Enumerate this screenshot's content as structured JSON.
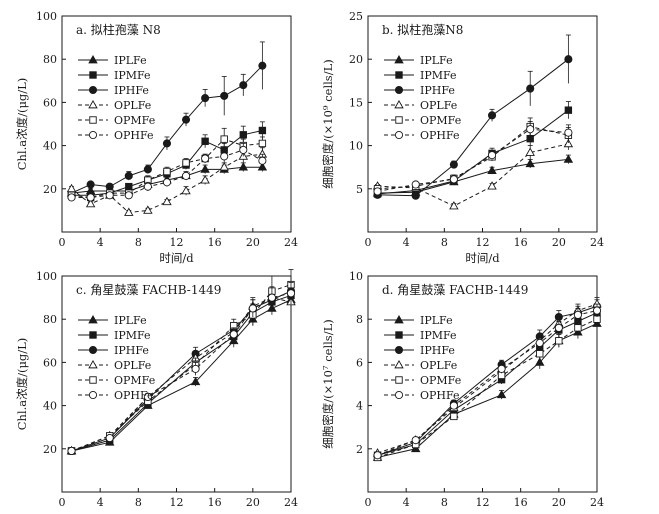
{
  "figure": {
    "series_styles": {
      "IPLFe": {
        "marker": "triangle",
        "fill": "#1a1a1a",
        "dash": "none"
      },
      "IPMFe": {
        "marker": "square",
        "fill": "#1a1a1a",
        "dash": "none"
      },
      "IPHFe": {
        "marker": "circle",
        "fill": "#1a1a1a",
        "dash": "none"
      },
      "OPLFe": {
        "marker": "triangle",
        "fill": "#ffffff",
        "dash": "dashed"
      },
      "OPMFe": {
        "marker": "square",
        "fill": "#ffffff",
        "dash": "dashed"
      },
      "OPHFe": {
        "marker": "circle",
        "fill": "#ffffff",
        "dash": "dashed"
      }
    },
    "line_color": "#1a1a1a"
  },
  "chart_data": [
    {
      "type": "line",
      "panel": "a",
      "title": "a. 拟柱孢藻 N8",
      "xlabel": "时间/d",
      "ylabel": "Chl.a浓度/(μg/L)",
      "xlim": [
        0,
        24
      ],
      "ylim": [
        0,
        100
      ],
      "xticks": [
        0,
        4,
        8,
        12,
        16,
        20,
        24
      ],
      "yticks": [
        20,
        40,
        60,
        80,
        100
      ],
      "legend_position": "top-left",
      "grid": false,
      "series": [
        {
          "name": "IPLFe",
          "x": [
            1,
            3,
            5,
            7,
            9,
            11,
            13,
            15,
            17,
            19,
            21
          ],
          "y": [
            18,
            19,
            19,
            19,
            22,
            24,
            26,
            29,
            29,
            30,
            30
          ],
          "err": [
            1,
            1,
            1,
            1,
            1,
            1,
            1,
            2,
            2,
            2,
            2
          ]
        },
        {
          "name": "IPMFe",
          "x": [
            1,
            3,
            5,
            7,
            9,
            11,
            13,
            15,
            17,
            19,
            21
          ],
          "y": [
            17,
            17,
            18,
            21,
            24,
            27,
            31,
            42,
            38,
            45,
            47
          ],
          "err": [
            1,
            1,
            1,
            1,
            2,
            2,
            2,
            3,
            3,
            4,
            4
          ]
        },
        {
          "name": "IPHFe",
          "x": [
            1,
            3,
            5,
            7,
            9,
            11,
            13,
            15,
            17,
            19,
            21
          ],
          "y": [
            18,
            22,
            21,
            26,
            29,
            41,
            52,
            62,
            63,
            68,
            77
          ],
          "err": [
            1,
            1,
            1,
            2,
            2,
            3,
            3,
            4,
            9,
            5,
            11
          ]
        },
        {
          "name": "OPLFe",
          "x": [
            1,
            3,
            5,
            7,
            9,
            11,
            13,
            15,
            17,
            19,
            21
          ],
          "y": [
            20,
            13,
            17,
            9,
            10,
            14,
            19,
            24,
            30,
            35,
            36
          ],
          "err": [
            1,
            1,
            1,
            1,
            1,
            1,
            2,
            2,
            2,
            3,
            3
          ]
        },
        {
          "name": "OPMFe",
          "x": [
            1,
            3,
            5,
            7,
            9,
            11,
            13,
            15,
            17,
            19,
            21
          ],
          "y": [
            17,
            16,
            18,
            18,
            24,
            28,
            32,
            34,
            43,
            40,
            41
          ],
          "err": [
            1,
            1,
            1,
            1,
            2,
            2,
            2,
            2,
            5,
            3,
            3
          ]
        },
        {
          "name": "OPHFe",
          "x": [
            1,
            3,
            5,
            7,
            9,
            11,
            13,
            15,
            17,
            19,
            21
          ],
          "y": [
            16,
            16,
            17,
            17,
            21,
            23,
            26,
            34,
            35,
            38,
            33
          ],
          "err": [
            1,
            1,
            1,
            1,
            2,
            2,
            2,
            2,
            3,
            3,
            3
          ]
        }
      ]
    },
    {
      "type": "line",
      "panel": "b",
      "title": "b. 拟柱孢藻N8",
      "xlabel": "时间/d",
      "ylabel": "细胞密度/(×10⁹ cells/L)",
      "xlim": [
        0,
        24
      ],
      "ylim": [
        0,
        25
      ],
      "xticks": [
        0,
        4,
        8,
        12,
        16,
        20,
        24
      ],
      "yticks": [
        5,
        10,
        15,
        20,
        25
      ],
      "legend_position": "top-left",
      "grid": false,
      "series": [
        {
          "name": "IPLFe",
          "x": [
            1,
            5,
            9,
            13,
            17,
            21
          ],
          "y": [
            4.5,
            4.6,
            5.8,
            7.1,
            7.9,
            8.4
          ],
          "err": [
            0.2,
            0.2,
            0.3,
            0.4,
            0.5,
            0.5
          ]
        },
        {
          "name": "IPMFe",
          "x": [
            1,
            5,
            9,
            13,
            17,
            21
          ],
          "y": [
            4.4,
            4.8,
            5.9,
            9.1,
            10.8,
            14.1
          ],
          "err": [
            0.2,
            0.2,
            0.3,
            0.6,
            0.8,
            1.0
          ]
        },
        {
          "name": "IPHFe",
          "x": [
            1,
            5,
            9,
            13,
            17,
            21
          ],
          "y": [
            4.3,
            4.2,
            7.8,
            13.5,
            16.6,
            20.0
          ],
          "err": [
            0.2,
            0.2,
            0.4,
            0.7,
            2.0,
            2.8
          ]
        },
        {
          "name": "OPLFe",
          "x": [
            1,
            5,
            9,
            13,
            17,
            21
          ],
          "y": [
            5.3,
            5.1,
            3.0,
            5.3,
            9.2,
            10.2
          ],
          "err": [
            0.2,
            0.2,
            0.3,
            0.3,
            0.8,
            0.7
          ]
        },
        {
          "name": "OPMFe",
          "x": [
            1,
            5,
            9,
            13,
            17,
            21
          ],
          "y": [
            5.0,
            5.3,
            6.2,
            8.7,
            12.2,
            11.2
          ],
          "err": [
            0.2,
            0.2,
            0.4,
            0.5,
            1.0,
            0.9
          ]
        },
        {
          "name": "OPHFe",
          "x": [
            1,
            5,
            9,
            13,
            17,
            21
          ],
          "y": [
            4.7,
            5.5,
            6.1,
            8.9,
            11.9,
            11.5
          ],
          "err": [
            0.2,
            0.2,
            0.3,
            0.5,
            0.9,
            0.9
          ]
        }
      ]
    },
    {
      "type": "line",
      "panel": "c",
      "title": "c. 角星鼓藻 FACHB-1449",
      "xlabel": "时间/d",
      "ylabel": "Chl.a浓度/(μg/L)",
      "xlim": [
        0,
        24
      ],
      "ylim": [
        0,
        100
      ],
      "xticks": [
        0,
        4,
        8,
        12,
        16,
        20,
        24
      ],
      "yticks": [
        20,
        40,
        60,
        80,
        100
      ],
      "legend_position": "top-left",
      "grid": false,
      "series": [
        {
          "name": "IPLFe",
          "x": [
            1,
            5,
            9,
            14,
            18,
            20,
            22,
            24
          ],
          "y": [
            19,
            23,
            40,
            51,
            70,
            80,
            85,
            89
          ],
          "err": [
            0.5,
            1,
            1.5,
            2,
            3,
            3,
            3,
            3
          ]
        },
        {
          "name": "IPMFe",
          "x": [
            1,
            5,
            9,
            14,
            18,
            20,
            22,
            24
          ],
          "y": [
            19,
            24,
            41,
            60,
            72,
            83,
            88,
            91
          ],
          "err": [
            0.5,
            1,
            1.5,
            2.5,
            3,
            4,
            4,
            4
          ]
        },
        {
          "name": "IPHFe",
          "x": [
            1,
            5,
            9,
            14,
            18,
            20,
            22,
            24
          ],
          "y": [
            19,
            25,
            43,
            64,
            75,
            85,
            89,
            93
          ],
          "err": [
            0.5,
            1,
            1.5,
            3,
            3,
            4,
            4,
            4
          ]
        },
        {
          "name": "OPLFe",
          "x": [
            1,
            5,
            9,
            14,
            18,
            20,
            22,
            24
          ],
          "y": [
            19,
            26,
            44,
            62,
            74,
            86,
            90,
            88
          ],
          "err": [
            0.5,
            1,
            1.5,
            3,
            3,
            4,
            4,
            5
          ]
        },
        {
          "name": "OPMFe",
          "x": [
            1,
            5,
            9,
            14,
            18,
            20,
            22,
            24
          ],
          "y": [
            19,
            26,
            42,
            59,
            77,
            82,
            93,
            96
          ],
          "err": [
            0.5,
            1,
            1.5,
            3,
            3,
            5,
            7,
            7
          ]
        },
        {
          "name": "OPHFe",
          "x": [
            1,
            5,
            9,
            14,
            18,
            20,
            22,
            24
          ],
          "y": [
            19,
            25,
            44,
            57,
            73,
            85,
            90,
            92
          ],
          "err": [
            0.5,
            1,
            1.5,
            3,
            3,
            4,
            5,
            5
          ]
        }
      ]
    },
    {
      "type": "line",
      "panel": "d",
      "title": "d. 角星鼓藻 FACHB-1449",
      "xlabel": "时间/d",
      "ylabel": "细胞密度/(×10⁷ cells/L)",
      "xlim": [
        0,
        24
      ],
      "ylim": [
        0,
        10
      ],
      "xticks": [
        0,
        4,
        8,
        12,
        16,
        20,
        24
      ],
      "yticks": [
        2,
        4,
        6,
        8,
        10
      ],
      "legend_position": "top-left",
      "grid": false,
      "series": [
        {
          "name": "IPLFe",
          "x": [
            1,
            5,
            9,
            14,
            18,
            20,
            22,
            24
          ],
          "y": [
            1.6,
            2.0,
            3.6,
            4.5,
            6.0,
            7.0,
            7.4,
            7.8
          ],
          "err": [
            0.05,
            0.1,
            0.15,
            0.2,
            0.3,
            0.3,
            0.3,
            0.3
          ]
        },
        {
          "name": "IPMFe",
          "x": [
            1,
            5,
            9,
            14,
            18,
            20,
            22,
            24
          ],
          "y": [
            1.7,
            2.2,
            3.8,
            5.2,
            6.7,
            7.5,
            7.9,
            8.3
          ],
          "err": [
            0.05,
            0.1,
            0.15,
            0.2,
            0.3,
            0.3,
            0.3,
            0.3
          ]
        },
        {
          "name": "IPHFe",
          "x": [
            1,
            5,
            9,
            14,
            18,
            20,
            22,
            24
          ],
          "y": [
            1.7,
            2.3,
            4.1,
            5.9,
            7.2,
            8.1,
            8.3,
            8.6
          ],
          "err": [
            0.05,
            0.1,
            0.15,
            0.2,
            0.3,
            0.3,
            0.3,
            0.3
          ]
        },
        {
          "name": "OPLFe",
          "x": [
            1,
            5,
            9,
            14,
            18,
            20,
            22,
            24
          ],
          "y": [
            1.8,
            2.4,
            3.9,
            5.6,
            7.0,
            7.8,
            8.4,
            8.7
          ],
          "err": [
            0.05,
            0.1,
            0.15,
            0.2,
            0.3,
            0.3,
            0.3,
            0.3
          ]
        },
        {
          "name": "OPMFe",
          "x": [
            1,
            5,
            9,
            14,
            18,
            20,
            22,
            24
          ],
          "y": [
            1.6,
            2.2,
            3.5,
            5.4,
            6.4,
            7.0,
            7.6,
            8.0
          ],
          "err": [
            0.05,
            0.1,
            0.15,
            0.2,
            0.3,
            0.3,
            0.3,
            0.3
          ]
        },
        {
          "name": "OPHFe",
          "x": [
            1,
            5,
            9,
            14,
            18,
            20,
            22,
            24
          ],
          "y": [
            1.7,
            2.4,
            4.0,
            5.7,
            6.9,
            7.6,
            8.2,
            8.4
          ],
          "err": [
            0.05,
            0.1,
            0.15,
            0.2,
            0.3,
            0.3,
            0.3,
            0.3
          ]
        }
      ]
    }
  ]
}
